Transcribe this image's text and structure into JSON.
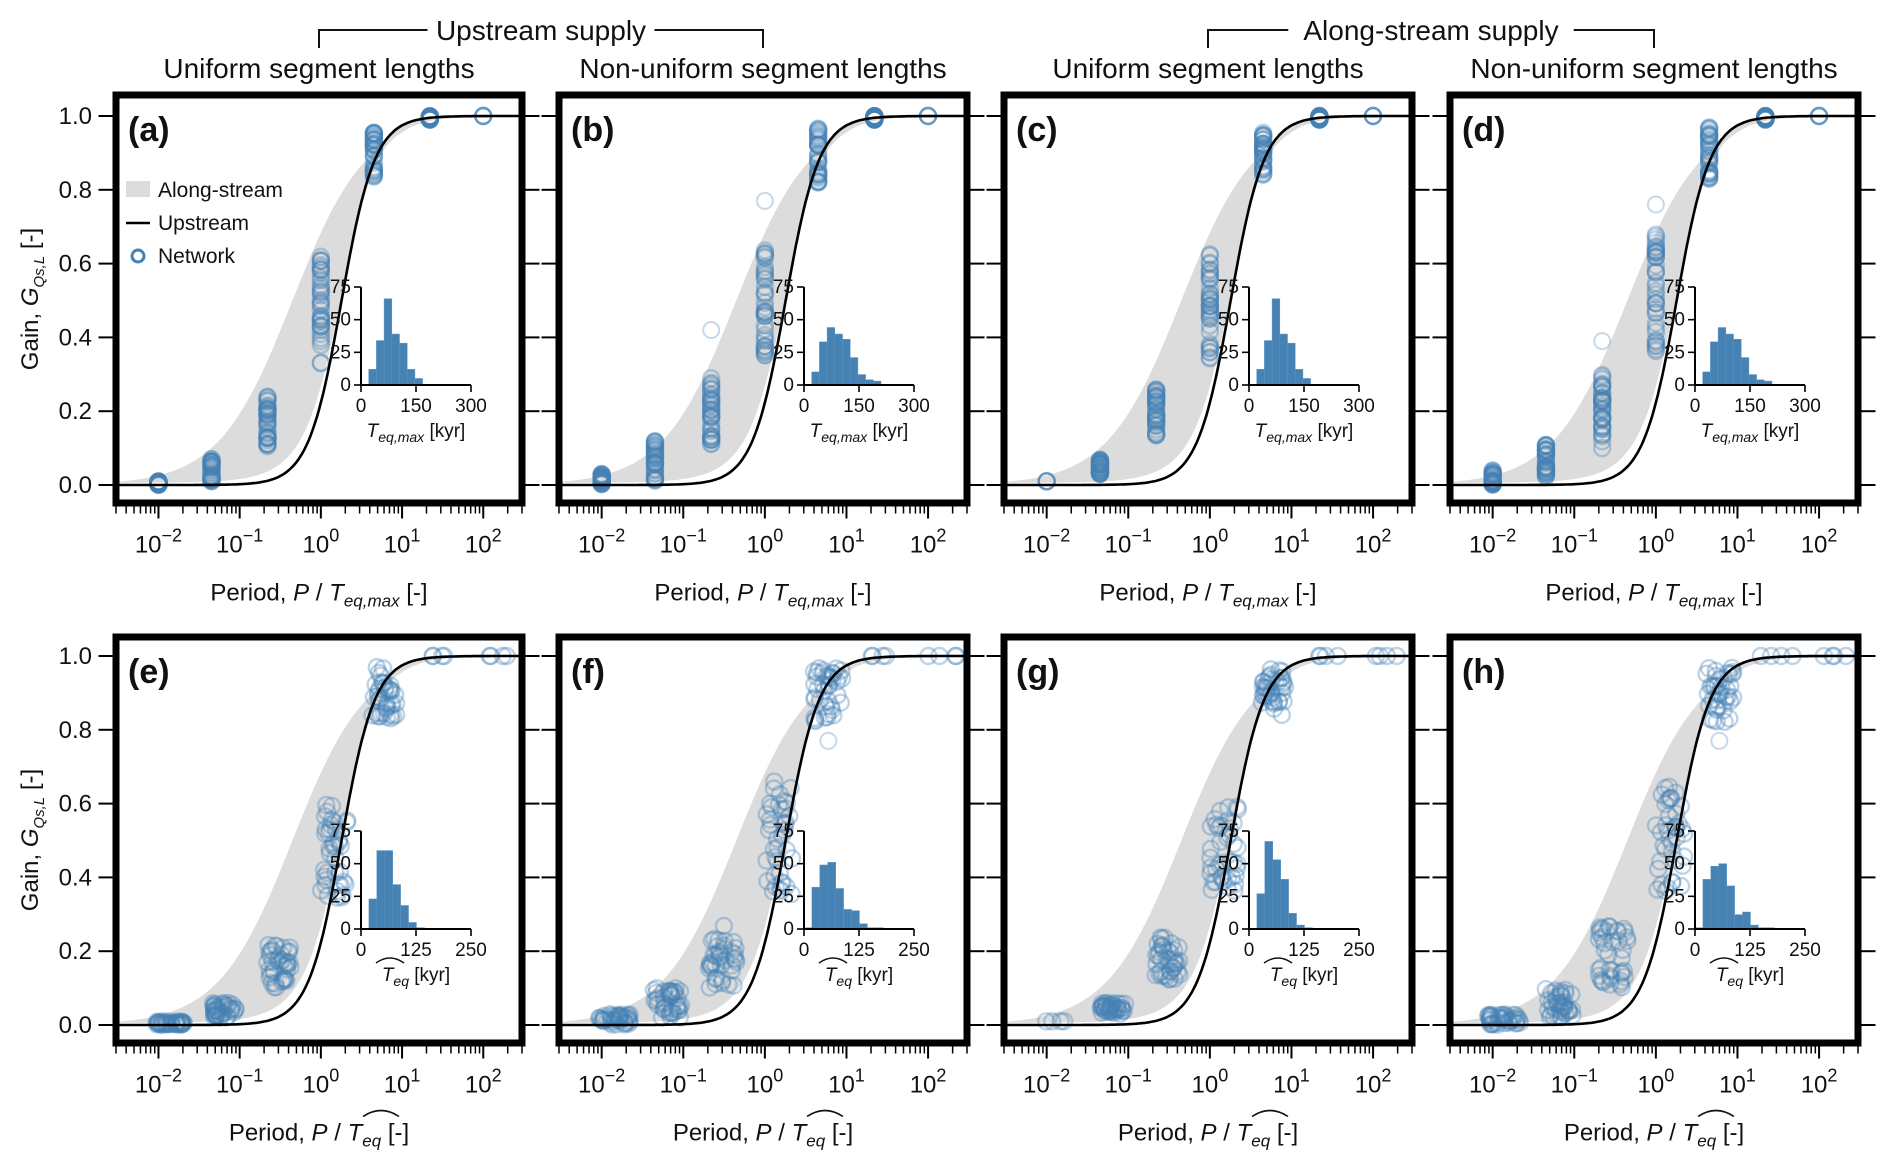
{
  "figure": {
    "group_titles": [
      {
        "label": "Upstream supply",
        "columns": [
          0,
          1
        ]
      },
      {
        "label": "Along-stream supply",
        "columns": [
          2,
          3
        ]
      }
    ],
    "column_titles": [
      "Uniform segment lengths",
      "Non-uniform segment lengths",
      "Uniform segment lengths",
      "Non-uniform segment lengths"
    ],
    "colors": {
      "network": "#4682b4",
      "upstream_line": "#000000",
      "along_stream_band": "#dcdcdc",
      "histogram": "#4682b4"
    },
    "legend": {
      "panel": "a",
      "items": [
        {
          "label": "Along-stream",
          "type": "band"
        },
        {
          "label": "Upstream",
          "type": "line"
        },
        {
          "label": "Network",
          "type": "marker"
        }
      ]
    }
  },
  "chart_data": [
    {
      "panel": "a",
      "row": 0,
      "col": 0,
      "type": "scatter",
      "label": "(a)",
      "xlabel": "Period, P / T_eq,max [-]",
      "xlabel_parts": [
        "Period, ",
        "P",
        " / ",
        "T",
        "eq,max",
        " [-]"
      ],
      "ylabel": "Gain, G_Qs,L [-]",
      "xscale": "log",
      "xlim": [
        0.003,
        300
      ],
      "ylim": [
        0,
        1
      ],
      "xticks": [
        "10^-2",
        "10^-1",
        "10^0",
        "10^1",
        "10^2"
      ],
      "yticks": [
        "0.0",
        "0.2",
        "0.4",
        "0.6",
        "0.8",
        "1.0"
      ],
      "network_clusters": [
        {
          "x": 0.01,
          "ymin": 0.0,
          "ymax": 0.01,
          "spread": 0.0
        },
        {
          "x": 0.045,
          "ymin": 0.01,
          "ymax": 0.07,
          "spread": 0.0
        },
        {
          "x": 0.22,
          "ymin": 0.1,
          "ymax": 0.24,
          "spread": 0.0
        },
        {
          "x": 1.0,
          "ymin": 0.33,
          "ymax": 0.62,
          "spread": 0.0
        },
        {
          "x": 4.5,
          "ymin": 0.83,
          "ymax": 0.96,
          "spread": 0.0
        },
        {
          "x": 22,
          "ymin": 0.99,
          "ymax": 1.0,
          "spread": 0.0
        },
        {
          "x": 100,
          "ymin": 1.0,
          "ymax": 1.0,
          "spread": 0.0
        }
      ],
      "inset": {
        "title": "T_eq,max [kyr]",
        "title_parts": [
          "T",
          "eq,max",
          " [kyr]"
        ],
        "hat": false,
        "xlim": [
          0,
          300
        ],
        "xticks": [
          "0",
          "150",
          "300"
        ],
        "ylim": [
          0,
          75
        ],
        "yticks": [
          "0",
          "25",
          "50",
          "75"
        ],
        "bin_start": 21,
        "bin_width": 21,
        "counts": [
          12,
          34,
          66,
          39,
          32,
          12,
          5
        ]
      }
    },
    {
      "panel": "b",
      "row": 0,
      "col": 1,
      "type": "scatter",
      "label": "(b)",
      "xlabel": "Period, P / T_eq,max [-]",
      "xlabel_parts": [
        "Period, ",
        "P",
        " / ",
        "T",
        "eq,max",
        " [-]"
      ],
      "xscale": "log",
      "xlim": [
        0.003,
        300
      ],
      "ylim": [
        0,
        1
      ],
      "xticks": [
        "10^-2",
        "10^-1",
        "10^0",
        "10^1",
        "10^2"
      ],
      "network_clusters": [
        {
          "x": 0.01,
          "ymin": 0.0,
          "ymax": 0.03,
          "spread": 0.0
        },
        {
          "x": 0.045,
          "ymin": 0.01,
          "ymax": 0.12,
          "spread": 0.0
        },
        {
          "x": 0.22,
          "ymin": 0.1,
          "ymax": 0.29,
          "spread": 0.0,
          "outliers": [
            0.42
          ]
        },
        {
          "x": 1.0,
          "ymin": 0.35,
          "ymax": 0.65,
          "spread": 0.0,
          "outliers": [
            0.77
          ]
        },
        {
          "x": 4.5,
          "ymin": 0.82,
          "ymax": 0.97,
          "spread": 0.0
        },
        {
          "x": 22,
          "ymin": 0.99,
          "ymax": 1.0,
          "spread": 0.0
        },
        {
          "x": 100,
          "ymin": 1.0,
          "ymax": 1.0,
          "spread": 0.0
        }
      ],
      "inset": {
        "title": "T_eq,max [kyr]",
        "title_parts": [
          "T",
          "eq,max",
          " [kyr]"
        ],
        "hat": false,
        "xlim": [
          0,
          300
        ],
        "xticks": [
          "0",
          "150",
          "300"
        ],
        "ylim": [
          0,
          75
        ],
        "yticks": [
          "0",
          "25",
          "50",
          "75"
        ],
        "bin_start": 21,
        "bin_width": 21,
        "counts": [
          10,
          33,
          44,
          39,
          35,
          21,
          8,
          4,
          3
        ]
      }
    },
    {
      "panel": "c",
      "row": 0,
      "col": 2,
      "type": "scatter",
      "label": "(c)",
      "xlabel": "Period, P / T_eq,max [-]",
      "xlabel_parts": [
        "Period, ",
        "P",
        " / ",
        "T",
        "eq,max",
        " [-]"
      ],
      "xscale": "log",
      "xlim": [
        0.003,
        300
      ],
      "ylim": [
        0,
        1
      ],
      "xticks": [
        "10^-2",
        "10^-1",
        "10^0",
        "10^1",
        "10^2"
      ],
      "network_clusters": [
        {
          "x": 0.01,
          "ymin": 0.01,
          "ymax": 0.01,
          "spread": 0.0
        },
        {
          "x": 0.045,
          "ymin": 0.03,
          "ymax": 0.07,
          "spread": 0.0
        },
        {
          "x": 0.22,
          "ymin": 0.13,
          "ymax": 0.26,
          "spread": 0.0
        },
        {
          "x": 1.0,
          "ymin": 0.34,
          "ymax": 0.63,
          "spread": 0.0
        },
        {
          "x": 4.5,
          "ymin": 0.84,
          "ymax": 0.96,
          "spread": 0.0
        },
        {
          "x": 22,
          "ymin": 0.99,
          "ymax": 1.0,
          "spread": 0.0
        },
        {
          "x": 100,
          "ymin": 1.0,
          "ymax": 1.0,
          "spread": 0.0
        }
      ],
      "inset": {
        "title": "T_eq,max [kyr]",
        "title_parts": [
          "T",
          "eq,max",
          " [kyr]"
        ],
        "hat": false,
        "xlim": [
          0,
          300
        ],
        "xticks": [
          "0",
          "150",
          "300"
        ],
        "ylim": [
          0,
          75
        ],
        "yticks": [
          "0",
          "25",
          "50",
          "75"
        ],
        "bin_start": 21,
        "bin_width": 21,
        "counts": [
          12,
          34,
          66,
          39,
          32,
          12,
          5
        ]
      }
    },
    {
      "panel": "d",
      "row": 0,
      "col": 3,
      "type": "scatter",
      "label": "(d)",
      "xlabel": "Period, P / T_eq,max [-]",
      "xlabel_parts": [
        "Period, ",
        "P",
        " / ",
        "T",
        "eq,max",
        " [-]"
      ],
      "xscale": "log",
      "xlim": [
        0.003,
        300
      ],
      "ylim": [
        0,
        1
      ],
      "xticks": [
        "10^-2",
        "10^-1",
        "10^0",
        "10^1",
        "10^2"
      ],
      "network_clusters": [
        {
          "x": 0.01,
          "ymin": 0.0,
          "ymax": 0.04,
          "spread": 0.0
        },
        {
          "x": 0.045,
          "ymin": 0.02,
          "ymax": 0.11,
          "spread": 0.0
        },
        {
          "x": 0.22,
          "ymin": 0.1,
          "ymax": 0.31,
          "spread": 0.0,
          "outliers": [
            0.39
          ]
        },
        {
          "x": 1.0,
          "ymin": 0.34,
          "ymax": 0.68,
          "spread": 0.0,
          "outliers": [
            0.76
          ]
        },
        {
          "x": 4.5,
          "ymin": 0.83,
          "ymax": 0.97,
          "spread": 0.0
        },
        {
          "x": 22,
          "ymin": 0.99,
          "ymax": 1.0,
          "spread": 0.0
        },
        {
          "x": 100,
          "ymin": 1.0,
          "ymax": 1.0,
          "spread": 0.0
        }
      ],
      "inset": {
        "title": "T_eq,max [kyr]",
        "title_parts": [
          "T",
          "eq,max",
          " [kyr]"
        ],
        "hat": false,
        "xlim": [
          0,
          300
        ],
        "xticks": [
          "0",
          "150",
          "300"
        ],
        "ylim": [
          0,
          75
        ],
        "yticks": [
          "0",
          "25",
          "50",
          "75"
        ],
        "bin_start": 21,
        "bin_width": 21,
        "counts": [
          10,
          33,
          44,
          39,
          35,
          21,
          8,
          4,
          3
        ]
      }
    },
    {
      "panel": "e",
      "row": 1,
      "col": 0,
      "type": "scatter",
      "label": "(e)",
      "xlabel": "Period, P / T̂_eq [-]",
      "xlabel_parts": [
        "Period, ",
        "P",
        " / ",
        "T",
        "eq",
        " [-]"
      ],
      "ylabel": "Gain, G_Qs,L [-]",
      "xscale": "log",
      "xlim": [
        0.003,
        300
      ],
      "ylim": [
        0,
        1
      ],
      "xticks": [
        "10^-2",
        "10^-1",
        "10^0",
        "10^1",
        "10^2"
      ],
      "yticks": [
        "0.0",
        "0.2",
        "0.4",
        "0.6",
        "0.8",
        "1.0"
      ],
      "network_clusters": [
        {
          "x": 0.014,
          "ymin": 0.0,
          "ymax": 0.01,
          "spread": 0.35
        },
        {
          "x": 0.065,
          "ymin": 0.02,
          "ymax": 0.06,
          "spread": 0.3
        },
        {
          "x": 0.3,
          "ymin": 0.1,
          "ymax": 0.22,
          "spread": 0.3
        },
        {
          "x": 1.5,
          "ymin": 0.34,
          "ymax": 0.6,
          "spread": 0.35
        },
        {
          "x": 6,
          "ymin": 0.83,
          "ymax": 0.97,
          "spread": 0.3
        },
        {
          "x": 30,
          "ymin": 1.0,
          "ymax": 1.0,
          "spread": 0.35
        },
        {
          "x": 150,
          "ymin": 1.0,
          "ymax": 1.0,
          "spread": 0.3
        }
      ],
      "inset": {
        "title": "T̂_eq [kyr]",
        "title_parts": [
          "T",
          "eq",
          " [kyr]"
        ],
        "hat": true,
        "xlim": [
          0,
          250
        ],
        "xticks": [
          "0",
          "125",
          "250"
        ],
        "ylim": [
          0,
          75
        ],
        "yticks": [
          "0",
          "25",
          "50",
          "75"
        ],
        "bin_start": 18,
        "bin_width": 18,
        "counts": [
          23,
          60,
          60,
          34,
          18,
          5,
          1
        ]
      }
    },
    {
      "panel": "f",
      "row": 1,
      "col": 1,
      "type": "scatter",
      "label": "(f)",
      "xlabel": "Period, P / T̂_eq [-]",
      "xlabel_parts": [
        "Period, ",
        "P",
        " / ",
        "T",
        "eq",
        " [-]"
      ],
      "xscale": "log",
      "xlim": [
        0.003,
        300
      ],
      "ylim": [
        0,
        1
      ],
      "xticks": [
        "10^-2",
        "10^-1",
        "10^0",
        "10^1",
        "10^2"
      ],
      "network_clusters": [
        {
          "x": 0.014,
          "ymin": 0.0,
          "ymax": 0.03,
          "spread": 0.4
        },
        {
          "x": 0.065,
          "ymin": 0.02,
          "ymax": 0.1,
          "spread": 0.35
        },
        {
          "x": 0.3,
          "ymin": 0.1,
          "ymax": 0.27,
          "spread": 0.35
        },
        {
          "x": 1.5,
          "ymin": 0.35,
          "ymax": 0.66,
          "spread": 0.35
        },
        {
          "x": 6,
          "ymin": 0.82,
          "ymax": 0.97,
          "spread": 0.35,
          "outliers": [
            0.77
          ]
        },
        {
          "x": 30,
          "ymin": 1.0,
          "ymax": 1.0,
          "spread": 0.4
        },
        {
          "x": 150,
          "ymin": 1.0,
          "ymax": 1.0,
          "spread": 0.35
        }
      ],
      "inset": {
        "title": "T̂_eq [kyr]",
        "title_parts": [
          "T",
          "eq",
          " [kyr]"
        ],
        "hat": true,
        "xlim": [
          0,
          250
        ],
        "xticks": [
          "0",
          "125",
          "250"
        ],
        "ylim": [
          0,
          75
        ],
        "yticks": [
          "0",
          "25",
          "50",
          "75"
        ],
        "bin_start": 0,
        "bin_width": 18,
        "counts": [
          1,
          32,
          49,
          51,
          31,
          15,
          14,
          4,
          1,
          1
        ]
      }
    },
    {
      "panel": "g",
      "row": 1,
      "col": 2,
      "type": "scatter",
      "label": "(g)",
      "xlabel": "Period, P / T̂_eq [-]",
      "xlabel_parts": [
        "Period, ",
        "P",
        " / ",
        "T",
        "eq",
        " [-]"
      ],
      "xscale": "log",
      "xlim": [
        0.003,
        300
      ],
      "ylim": [
        0,
        1
      ],
      "xticks": [
        "10^-2",
        "10^-1",
        "10^0",
        "10^1",
        "10^2"
      ],
      "network_clusters": [
        {
          "x": 0.014,
          "ymin": 0.01,
          "ymax": 0.01,
          "spread": 0.35
        },
        {
          "x": 0.065,
          "ymin": 0.03,
          "ymax": 0.06,
          "spread": 0.3
        },
        {
          "x": 0.3,
          "ymin": 0.12,
          "ymax": 0.24,
          "spread": 0.3
        },
        {
          "x": 1.5,
          "ymin": 0.36,
          "ymax": 0.6,
          "spread": 0.35
        },
        {
          "x": 6,
          "ymin": 0.84,
          "ymax": 0.97,
          "spread": 0.3
        },
        {
          "x": 30,
          "ymin": 1.0,
          "ymax": 1.0,
          "spread": 0.35
        },
        {
          "x": 150,
          "ymin": 1.0,
          "ymax": 1.0,
          "spread": 0.3
        }
      ],
      "inset": {
        "title": "T̂_eq [kyr]",
        "title_parts": [
          "T",
          "eq",
          " [kyr]"
        ],
        "hat": true,
        "xlim": [
          0,
          250
        ],
        "xticks": [
          "0",
          "125",
          "250"
        ],
        "ylim": [
          0,
          75
        ],
        "yticks": [
          "0",
          "25",
          "50",
          "75"
        ],
        "bin_start": 18,
        "bin_width": 18,
        "counts": [
          27,
          67,
          53,
          38,
          12,
          3,
          1
        ]
      }
    },
    {
      "panel": "h",
      "row": 1,
      "col": 3,
      "type": "scatter",
      "label": "(h)",
      "xlabel": "Period, P / T̂_eq [-]",
      "xlabel_parts": [
        "Period, ",
        "P",
        " / ",
        "T",
        "eq",
        " [-]"
      ],
      "xscale": "log",
      "xlim": [
        0.003,
        300
      ],
      "ylim": [
        0,
        1
      ],
      "xticks": [
        "10^-2",
        "10^-1",
        "10^0",
        "10^1",
        "10^2"
      ],
      "network_clusters": [
        {
          "x": 0.014,
          "ymin": 0.0,
          "ymax": 0.03,
          "spread": 0.4
        },
        {
          "x": 0.065,
          "ymin": 0.02,
          "ymax": 0.1,
          "spread": 0.35
        },
        {
          "x": 0.3,
          "ymin": 0.1,
          "ymax": 0.27,
          "spread": 0.35
        },
        {
          "x": 1.5,
          "ymin": 0.36,
          "ymax": 0.66,
          "spread": 0.35
        },
        {
          "x": 6,
          "ymin": 0.82,
          "ymax": 0.97,
          "spread": 0.35,
          "outliers": [
            0.77
          ]
        },
        {
          "x": 30,
          "ymin": 1.0,
          "ymax": 1.0,
          "spread": 0.4
        },
        {
          "x": 150,
          "ymin": 1.0,
          "ymax": 1.0,
          "spread": 0.35
        }
      ],
      "inset": {
        "title": "T̂_eq [kyr]",
        "title_parts": [
          "T",
          "eq",
          " [kyr]"
        ],
        "hat": true,
        "xlim": [
          0,
          250
        ],
        "xticks": [
          "0",
          "125",
          "250"
        ],
        "ylim": [
          0,
          75
        ],
        "yticks": [
          "0",
          "25",
          "50",
          "75"
        ],
        "bin_start": 0,
        "bin_width": 18,
        "counts": [
          1,
          38,
          48,
          50,
          33,
          11,
          13,
          3,
          1,
          1
        ]
      }
    }
  ],
  "curves": {
    "upstream": {
      "type": "line",
      "description": "Gain vs normalized period, upstream supply",
      "midpoint_x": 1.8,
      "logistic_slope": 1.7
    },
    "along_stream": {
      "type": "band",
      "description": "Along-stream supply envelope",
      "lower_at_xmin": 0.02,
      "upper_at_xmin": 0.06
    }
  }
}
